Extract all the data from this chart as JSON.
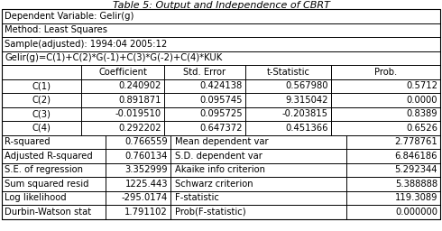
{
  "title": "Table 5: Output and Independence of CBRT",
  "header_rows": [
    "Dependent Variable: Gelir(g)",
    "Method: Least Squares",
    "Sample(adjusted): 1994:04 2005:12",
    "Gelir(g)=C(1)+C(2)*G(-1)+C(3)*G(-2)+C(4)*KUK"
  ],
  "col_headers": [
    "",
    "Coefficient",
    "Std. Error",
    "t-Statistic",
    "Prob."
  ],
  "coef_rows": [
    [
      "C(1)",
      "0.240902",
      "0.424138",
      "0.567980",
      "0.5712"
    ],
    [
      "C(2)",
      "0.891871",
      "0.095745",
      "9.315042",
      "0.0000"
    ],
    [
      "C(3)",
      "-0.019510",
      "0.095725",
      "-0.203815",
      "0.8389"
    ],
    [
      "C(4)",
      "0.292202",
      "0.647372",
      "0.451366",
      "0.6526"
    ]
  ],
  "stat_rows": [
    [
      "R-squared",
      "0.766559",
      "Mean dependent var",
      "2.778761"
    ],
    [
      "Adjusted R-squared",
      "0.760134",
      "S.D. dependent var",
      "6.846186"
    ],
    [
      "S.E. of regression",
      "3.352999",
      "Akaike info criterion",
      "5.292344"
    ],
    [
      "Sum squared resid",
      "1225.443",
      "Schwarz criterion",
      "5.388888"
    ],
    [
      "Log likelihood",
      "-295.0174",
      "F-statistic",
      "119.3089"
    ],
    [
      "Durbin-Watson stat",
      "1.791102",
      "Prob(F-statistic)",
      "0.000000"
    ]
  ],
  "bg_color": "#ffffff",
  "border_color": "#000000",
  "text_color": "#000000",
  "font_size": 7.2,
  "title_font_size": 8.0
}
